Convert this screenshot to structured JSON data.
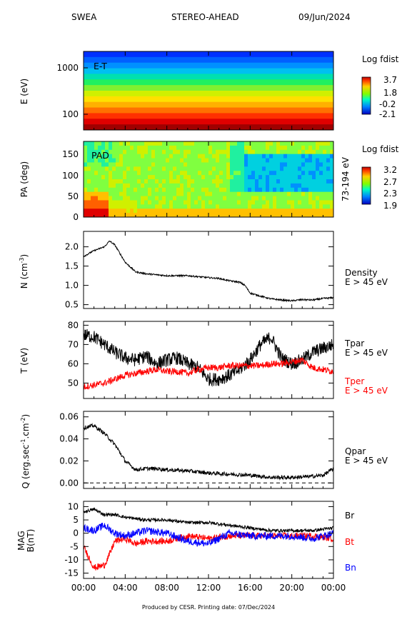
{
  "header": {
    "instrument": "SWEA",
    "spacecraft": "STEREO-AHEAD",
    "date": "09/Jun/2024"
  },
  "footer": {
    "text": "Produced by CESR.   Printing date: 07/Dec/2024"
  },
  "colors": {
    "red": "#ff0000",
    "blue": "#0000ff",
    "black": "#000000"
  },
  "chart_data": [
    {
      "type": "heatmap",
      "panel_label": "E-T",
      "ylabel": "E (eV)",
      "y_scale": "log",
      "y_ticks": [
        "1000",
        "100"
      ],
      "y_tick_values": [
        1000,
        100
      ],
      "colorbar": {
        "title": "Log fdist",
        "ticks": [
          "3.7",
          "1.8",
          "-0.2",
          "-2.1"
        ]
      },
      "rows_high_to_low_energy": [
        "#0030ff",
        "#0060ff",
        "#0090ff",
        "#00c0f0",
        "#00e0b0",
        "#20f060",
        "#80f030",
        "#d0f000",
        "#ffe000",
        "#ffb000",
        "#ff7000",
        "#ff3000",
        "#e00000",
        "#a00000"
      ]
    },
    {
      "type": "heatmap",
      "panel_label": "PAD",
      "ylabel": "PA (deg)",
      "ylim": [
        0,
        180
      ],
      "y_ticks": [
        "150",
        "100",
        "50",
        "0"
      ],
      "y_tick_values": [
        150,
        100,
        50,
        0
      ],
      "energy_range_label": "73-194 eV",
      "colorbar": {
        "title": "Log fdist",
        "ticks": [
          "3.2",
          "2.7",
          "2.3",
          "1.9"
        ]
      }
    },
    {
      "type": "line",
      "ylabel": "N (cm",
      "ylabel_sup": "-3",
      "ylim": [
        0.4,
        2.4
      ],
      "y_ticks": [
        "2.0",
        "1.5",
        "1.0",
        "0.5"
      ],
      "y_tick_values": [
        2.0,
        1.5,
        1.0,
        0.5
      ],
      "legend": [
        {
          "name": "Density",
          "sub": "E > 45 eV",
          "color": "#000000"
        }
      ],
      "series": [
        {
          "name": "Density",
          "hours": [
            0,
            1,
            2,
            2.5,
            3,
            4,
            5,
            6,
            8,
            10,
            12,
            13,
            14,
            15,
            15.5,
            16,
            17,
            18,
            19,
            20,
            21,
            22,
            23,
            24
          ],
          "values": [
            1.75,
            1.9,
            2.0,
            2.15,
            2.05,
            1.6,
            1.35,
            1.3,
            1.25,
            1.25,
            1.2,
            1.18,
            1.12,
            1.08,
            1.0,
            0.8,
            0.72,
            0.65,
            0.62,
            0.6,
            0.63,
            0.62,
            0.66,
            0.68
          ]
        }
      ]
    },
    {
      "type": "line",
      "ylabel": "T (eV)",
      "ylim": [
        42,
        82
      ],
      "y_ticks": [
        "80",
        "70",
        "60",
        "50"
      ],
      "y_tick_values": [
        80,
        70,
        60,
        50
      ],
      "legend": [
        {
          "name": "Tpar",
          "sub": "E > 45 eV",
          "color": "#000000"
        },
        {
          "name": "Tper",
          "sub": "E > 45 eV",
          "color": "#ff0000"
        }
      ],
      "series": [
        {
          "name": "Tpar",
          "hours": [
            0,
            1,
            2,
            3,
            4,
            5,
            6,
            7,
            8,
            9,
            10,
            11,
            12,
            13,
            14,
            15,
            16,
            17,
            18,
            19,
            20,
            21,
            22,
            23,
            24
          ],
          "values": [
            75,
            74,
            70,
            66,
            63,
            62,
            64,
            60,
            62,
            63,
            60,
            58,
            52,
            52,
            54,
            57,
            62,
            70,
            74,
            63,
            60,
            62,
            66,
            68,
            70
          ]
        },
        {
          "name": "Tper",
          "hours": [
            0,
            1,
            2,
            3,
            4,
            5,
            6,
            7,
            8,
            9,
            10,
            11,
            12,
            13,
            14,
            15,
            16,
            17,
            18,
            19,
            20,
            21,
            22,
            23,
            24
          ],
          "values": [
            48,
            49,
            50,
            52,
            54,
            55,
            56,
            57,
            56,
            56,
            55,
            57,
            58,
            58,
            59,
            59,
            59,
            59,
            60,
            60,
            61,
            62,
            58,
            57,
            56
          ]
        }
      ]
    },
    {
      "type": "line",
      "ylabel": "Q (erg.sec",
      "ylabel_sup1": "-1",
      "ylabel_mid": ".cm",
      "ylabel_sup2": "-2",
      "ylabel_end": ")",
      "ylim": [
        -0.005,
        0.065
      ],
      "y_ticks": [
        "0.06",
        "0.04",
        "0.02",
        "0.00"
      ],
      "y_tick_values": [
        0.06,
        0.04,
        0.02,
        0.0
      ],
      "legend": [
        {
          "name": "Qpar",
          "sub": "E > 45 eV",
          "color": "#000000"
        }
      ],
      "zero_line": true,
      "series": [
        {
          "name": "Qpar",
          "hours": [
            0,
            1,
            2,
            3,
            4,
            5,
            6,
            7,
            8,
            10,
            12,
            14,
            16,
            18,
            20,
            22,
            23,
            23.5,
            24
          ],
          "values": [
            0.05,
            0.052,
            0.045,
            0.035,
            0.02,
            0.012,
            0.013,
            0.013,
            0.012,
            0.011,
            0.009,
            0.008,
            0.007,
            0.005,
            0.005,
            0.006,
            0.007,
            0.01,
            0.013
          ]
        }
      ]
    },
    {
      "type": "line",
      "ylabel": "MAG",
      "ylabel2": "B(nT)",
      "ylim": [
        -17,
        12
      ],
      "y_ticks": [
        "10",
        "5",
        "0",
        "-5",
        "-10",
        "-15"
      ],
      "y_tick_values": [
        10,
        5,
        0,
        -5,
        -10,
        -15
      ],
      "legend": [
        {
          "name": "Br",
          "color": "#000000"
        },
        {
          "name": "Bt",
          "color": "#ff0000"
        },
        {
          "name": "Bn",
          "color": "#0000ff"
        }
      ],
      "series": [
        {
          "name": "Br",
          "hours": [
            0,
            1,
            2,
            3,
            4,
            6,
            8,
            10,
            12,
            14,
            16,
            18,
            20,
            22,
            24
          ],
          "values": [
            8,
            9,
            7,
            7,
            6,
            5,
            5,
            4,
            4,
            3,
            2,
            1,
            1,
            1,
            2
          ]
        },
        {
          "name": "Bt",
          "hours": [
            0,
            1,
            2,
            2.5,
            3,
            4,
            5,
            6,
            8,
            10,
            12,
            14,
            16,
            18,
            20,
            22,
            24
          ],
          "values": [
            -5,
            -13,
            -12,
            -8,
            -3,
            -2,
            -4,
            -3,
            -3,
            -1,
            -2,
            -1,
            -1,
            -1,
            -1,
            -1,
            -2
          ]
        },
        {
          "name": "Bn",
          "hours": [
            0,
            1,
            2,
            3,
            4,
            6,
            8,
            10,
            12,
            14,
            16,
            18,
            20,
            22,
            24
          ],
          "values": [
            2,
            1,
            3,
            0,
            -1,
            1,
            0,
            -3,
            -4,
            0,
            -1,
            -1,
            -1,
            -2,
            0
          ]
        }
      ]
    }
  ],
  "x_axis": {
    "ticks": [
      "00:00",
      "04:00",
      "08:00",
      "12:00",
      "16:00",
      "20:00",
      "00:00"
    ],
    "tick_hours": [
      0,
      4,
      8,
      12,
      16,
      20,
      24
    ]
  }
}
